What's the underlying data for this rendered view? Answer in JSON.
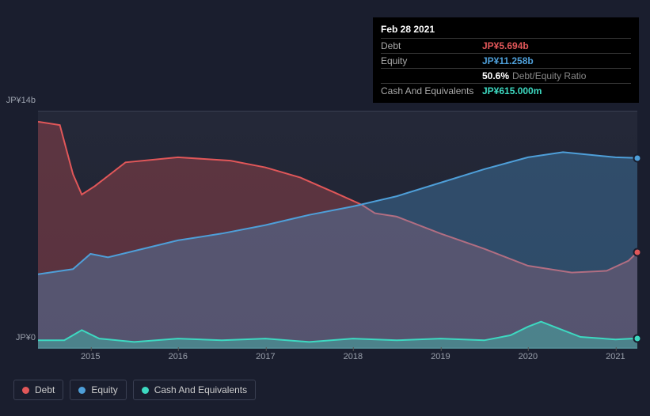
{
  "tooltip": {
    "date": "Feb 28 2021",
    "rows": [
      {
        "label": "Debt",
        "value": "JP¥5.694b",
        "color": "#e15759"
      },
      {
        "label": "Equity",
        "value": "JP¥11.258b",
        "color": "#4e9fd9"
      },
      {
        "label": "",
        "value": "50.6%",
        "suffix": "Debt/Equity Ratio",
        "color": "#ffffff"
      },
      {
        "label": "Cash And Equivalents",
        "value": "JP¥615.000m",
        "color": "#3dd9c1"
      }
    ]
  },
  "chart": {
    "type": "area",
    "background": "#1a1e2e",
    "plot_bg_top": "#242838",
    "plot_bg_bottom": "#1f2332",
    "border_color": "#3a3f52",
    "y_max_label": "JP¥14b",
    "y_min_label": "JP¥0",
    "y_max": 14,
    "y_min": 0,
    "x_start": 2014.4,
    "x_end": 2021.25,
    "x_ticks": [
      2015,
      2016,
      2017,
      2018,
      2019,
      2020,
      2021
    ],
    "series": [
      {
        "name": "Debt",
        "color": "#e15759",
        "fill": "rgba(225,87,89,0.30)",
        "points": [
          [
            2014.4,
            13.4
          ],
          [
            2014.65,
            13.2
          ],
          [
            2014.8,
            10.3
          ],
          [
            2014.9,
            9.1
          ],
          [
            2015.05,
            9.6
          ],
          [
            2015.4,
            11.0
          ],
          [
            2016.0,
            11.3
          ],
          [
            2016.6,
            11.1
          ],
          [
            2017.0,
            10.7
          ],
          [
            2017.4,
            10.1
          ],
          [
            2017.8,
            9.2
          ],
          [
            2018.1,
            8.5
          ],
          [
            2018.25,
            8.0
          ],
          [
            2018.5,
            7.8
          ],
          [
            2019.0,
            6.8
          ],
          [
            2019.5,
            5.9
          ],
          [
            2020.0,
            4.9
          ],
          [
            2020.5,
            4.5
          ],
          [
            2020.9,
            4.6
          ],
          [
            2021.15,
            5.2
          ],
          [
            2021.25,
            5.694
          ]
        ]
      },
      {
        "name": "Equity",
        "color": "#4e9fd9",
        "fill": "rgba(78,159,217,0.32)",
        "points": [
          [
            2014.4,
            4.4
          ],
          [
            2014.8,
            4.7
          ],
          [
            2015.0,
            5.6
          ],
          [
            2015.2,
            5.4
          ],
          [
            2015.6,
            5.9
          ],
          [
            2016.0,
            6.4
          ],
          [
            2016.5,
            6.8
          ],
          [
            2017.0,
            7.3
          ],
          [
            2017.5,
            7.9
          ],
          [
            2018.0,
            8.4
          ],
          [
            2018.5,
            9.0
          ],
          [
            2019.0,
            9.8
          ],
          [
            2019.5,
            10.6
          ],
          [
            2020.0,
            11.3
          ],
          [
            2020.4,
            11.6
          ],
          [
            2020.8,
            11.4
          ],
          [
            2021.0,
            11.3
          ],
          [
            2021.25,
            11.258
          ]
        ]
      },
      {
        "name": "Cash And Equivalents",
        "color": "#3dd9c1",
        "fill": "rgba(61,217,193,0.35)",
        "points": [
          [
            2014.4,
            0.5
          ],
          [
            2014.7,
            0.5
          ],
          [
            2014.9,
            1.1
          ],
          [
            2015.1,
            0.6
          ],
          [
            2015.5,
            0.4
          ],
          [
            2016.0,
            0.6
          ],
          [
            2016.5,
            0.5
          ],
          [
            2017.0,
            0.6
          ],
          [
            2017.5,
            0.4
          ],
          [
            2018.0,
            0.6
          ],
          [
            2018.5,
            0.5
          ],
          [
            2019.0,
            0.6
          ],
          [
            2019.5,
            0.5
          ],
          [
            2019.8,
            0.8
          ],
          [
            2020.0,
            1.3
          ],
          [
            2020.15,
            1.6
          ],
          [
            2020.35,
            1.2
          ],
          [
            2020.6,
            0.7
          ],
          [
            2021.0,
            0.55
          ],
          [
            2021.25,
            0.615
          ]
        ]
      }
    ],
    "end_markers": [
      {
        "series": "Equity",
        "x": 2021.25,
        "y": 11.258,
        "color": "#4e9fd9"
      },
      {
        "series": "Debt",
        "x": 2021.25,
        "y": 5.694,
        "color": "#e15759"
      },
      {
        "series": "Cash And Equivalents",
        "x": 2021.25,
        "y": 0.615,
        "color": "#3dd9c1"
      }
    ]
  },
  "legend": [
    {
      "label": "Debt",
      "color": "#e15759"
    },
    {
      "label": "Equity",
      "color": "#4e9fd9"
    },
    {
      "label": "Cash And Equivalents",
      "color": "#3dd9c1"
    }
  ]
}
